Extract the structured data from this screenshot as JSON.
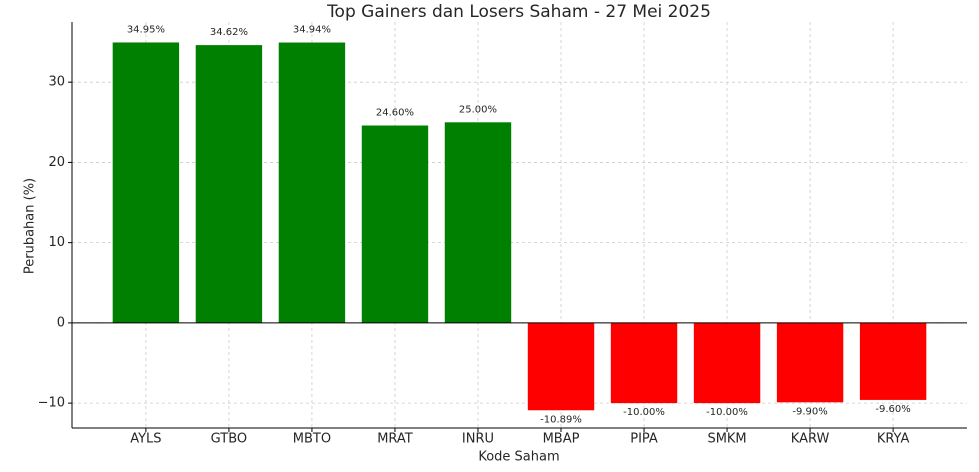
{
  "chart_data": {
    "type": "bar",
    "title": "Top Gainers dan Losers Saham - 27 Mei 2025",
    "x_label": "Kode Saham",
    "y_label": "Perubahan (%)",
    "categories": [
      "AYLS",
      "GTBO",
      "MBTO",
      "MRAT",
      "INRU",
      "MBAP",
      "PIPA",
      "SMKM",
      "KARW",
      "KRYA"
    ],
    "values": [
      34.95,
      34.62,
      34.94,
      24.6,
      25.0,
      -10.89,
      -10.0,
      -10.0,
      -9.9,
      -9.6
    ],
    "value_labels": [
      "34.95%",
      "34.62%",
      "34.94%",
      "24.60%",
      "25.00%",
      "-10.89%",
      "-10.00%",
      "-10.00%",
      "-9.90%",
      "-9.60%"
    ],
    "colors": [
      "#008000",
      "#008000",
      "#008000",
      "#008000",
      "#008000",
      "#ff0000",
      "#ff0000",
      "#ff0000",
      "#ff0000",
      "#ff0000"
    ],
    "ylim": [
      -13.1,
      37.5
    ],
    "yticks": [
      {
        "value": -10,
        "label": "−10"
      },
      0,
      10,
      20,
      30
    ],
    "grid": true
  }
}
